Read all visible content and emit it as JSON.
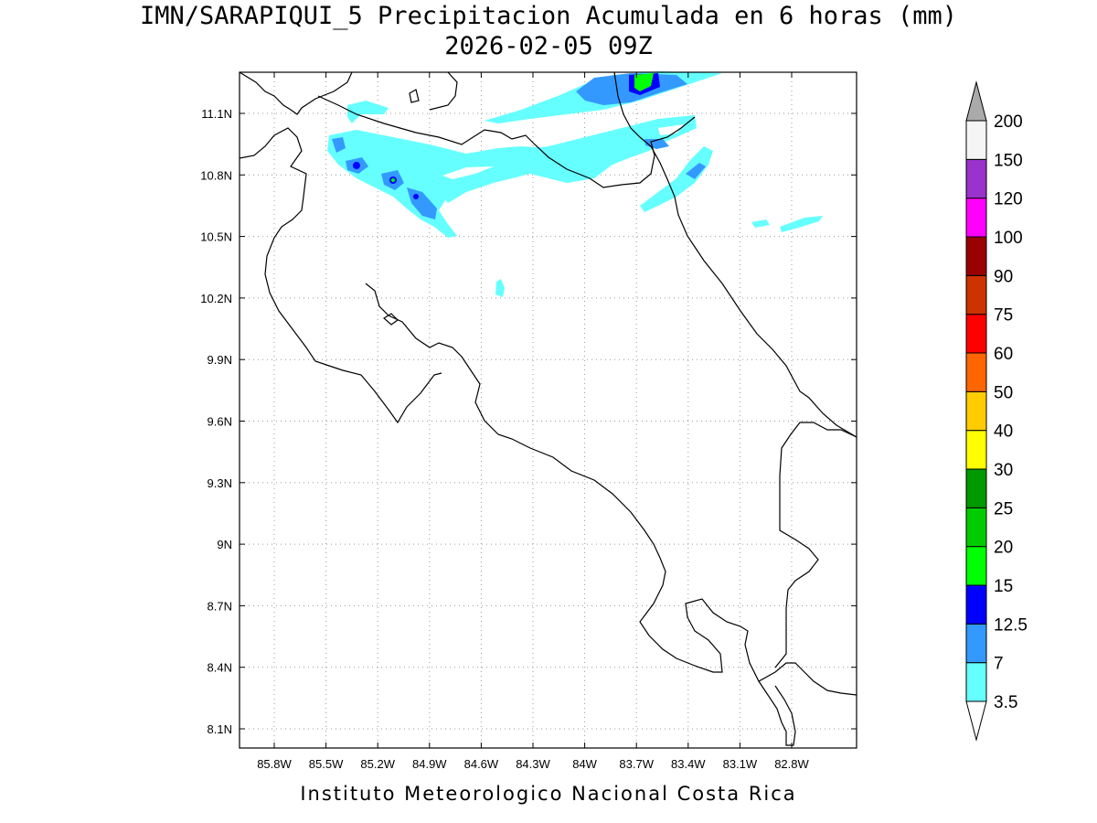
{
  "header": {
    "title_line1": "IMN/SARAPIQUI_5 Precipitacion Acumulada en 6 horas (mm)",
    "title_line2": "2026-02-05 09Z"
  },
  "footer": {
    "credit": "Instituto Meteorologico Nacional Costa Rica"
  },
  "map": {
    "lon_ticks": [
      "85.8W",
      "85.5W",
      "85.2W",
      "84.9W",
      "84.6W",
      "84.3W",
      "84W",
      "83.7W",
      "83.4W",
      "83.1W",
      "82.8W"
    ],
    "lat_ticks": [
      "11.1N",
      "10.8N",
      "10.5N",
      "10.2N",
      "9.9N",
      "9.6N",
      "9.3N",
      "9N",
      "8.7N",
      "8.4N",
      "8.1N"
    ],
    "lon_range": [
      86.03,
      82.43
    ],
    "lat_range": [
      8.0,
      11.3
    ],
    "grid": true
  },
  "colorbar": {
    "labels": [
      "3.5",
      "7",
      "12.5",
      "15",
      "20",
      "25",
      "30",
      "40",
      "50",
      "60",
      "75",
      "90",
      "100",
      "120",
      "150",
      "200"
    ],
    "colors": [
      "#66ffff",
      "#3399ff",
      "#0000ff",
      "#00ff00",
      "#00cc00",
      "#009900",
      "#ffff00",
      "#ffcc00",
      "#ff6600",
      "#ff0000",
      "#cc3300",
      "#990000",
      "#ff00ff",
      "#9933cc",
      "#f5f5f5"
    ],
    "top_arrow_color": "#aaaaaa",
    "bottom_arrow_color": "#ffffff"
  },
  "colors": {
    "light_cyan": "#66ffff",
    "blue": "#3399ff",
    "dark_blue": "#0000ff",
    "green": "#00ff00"
  }
}
